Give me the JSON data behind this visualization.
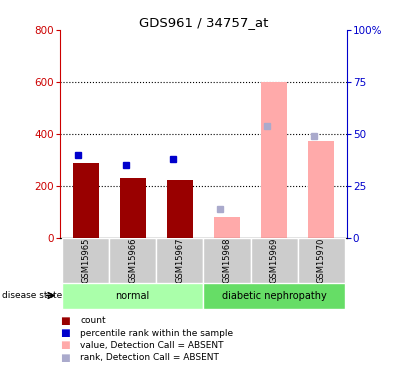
{
  "title": "GDS961 / 34757_at",
  "samples": [
    "GSM15965",
    "GSM15966",
    "GSM15967",
    "GSM15968",
    "GSM15969",
    "GSM15970"
  ],
  "count_values": [
    290,
    230,
    225,
    null,
    null,
    null
  ],
  "rank_values_pct": [
    40,
    35,
    38,
    null,
    null,
    null
  ],
  "absent_value": [
    null,
    null,
    null,
    80,
    600,
    375
  ],
  "absent_rank_pct": [
    null,
    null,
    null,
    14,
    54,
    49
  ],
  "left_ylim": [
    0,
    800
  ],
  "right_ylim": [
    0,
    100
  ],
  "left_yticks": [
    0,
    200,
    400,
    600,
    800
  ],
  "right_yticks": [
    0,
    25,
    50,
    75,
    100
  ],
  "right_yticklabels": [
    "0",
    "25",
    "50",
    "75",
    "100%"
  ],
  "left_color": "#cc0000",
  "right_color": "#0000cc",
  "bar_color_present": "#990000",
  "bar_color_absent": "#ffaaaa",
  "dot_color_present": "#0000cc",
  "dot_color_absent": "#aaaacc",
  "groups_info": [
    [
      0,
      3,
      "normal",
      "#aaffaa"
    ],
    [
      3,
      6,
      "diabetic nephropathy",
      "#66dd66"
    ]
  ],
  "bar_width": 0.55,
  "grid_lines": [
    200,
    400,
    600
  ],
  "legend_items": [
    [
      "#990000",
      "count"
    ],
    [
      "#0000cc",
      "percentile rank within the sample"
    ],
    [
      "#ffaaaa",
      "value, Detection Call = ABSENT"
    ],
    [
      "#aaaacc",
      "rank, Detection Call = ABSENT"
    ]
  ]
}
